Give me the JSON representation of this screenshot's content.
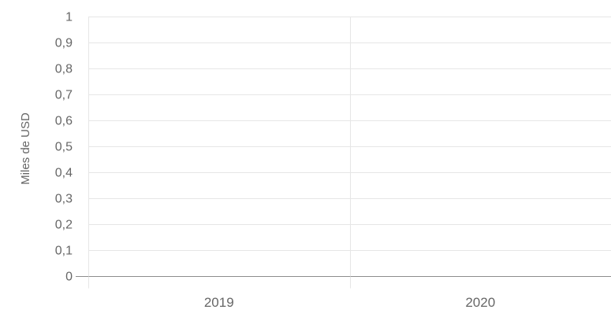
{
  "chart_data": {
    "type": "bar",
    "title": "",
    "xlabel": "",
    "ylabel": "Miles de USD",
    "categories": [
      "2019",
      "2020"
    ],
    "series": [
      {
        "values": [
          0,
          0
        ]
      }
    ],
    "ylim": [
      0,
      1
    ],
    "yticks": [
      "0",
      "0,1",
      "0,2",
      "0,3",
      "0,4",
      "0,5",
      "0,6",
      "0,7",
      "0,8",
      "0,9",
      "1"
    ],
    "grid": true,
    "legend": "none"
  },
  "colors": {
    "grid": "#e6e6e6",
    "axis": "#8c8c8c",
    "tick_text": "#666666",
    "label_text": "#666666",
    "bar": "#7cb5ec"
  }
}
